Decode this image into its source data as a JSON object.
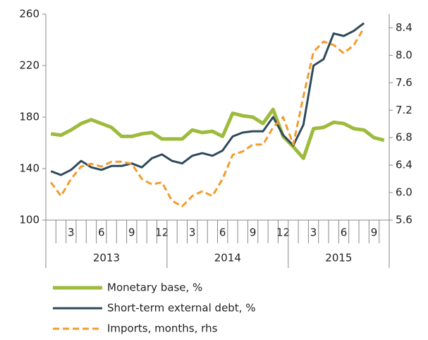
{
  "chart_data": {
    "type": "line",
    "categories": [
      null,
      null,
      "3",
      null,
      null,
      "6",
      null,
      null,
      "9",
      null,
      null,
      "12",
      null,
      null,
      "3",
      null,
      null,
      "6",
      null,
      null,
      "9",
      null,
      null,
      "12",
      null,
      null,
      "3",
      null,
      null,
      "6",
      null,
      null,
      "9",
      null
    ],
    "group_labels": [
      "2013",
      "2014",
      "2015"
    ],
    "series": [
      {
        "name": "Monetary base, %",
        "color": "#9dbb3c",
        "width": 5,
        "dashed": false,
        "values": [
          167,
          166,
          170,
          175,
          178,
          175,
          172,
          165,
          165,
          167,
          168,
          163,
          163,
          163,
          170,
          168,
          169,
          165,
          183,
          181,
          180,
          175,
          186,
          165,
          157,
          148,
          171,
          172,
          176,
          175,
          171,
          170,
          164,
          162
        ]
      },
      {
        "name": "Short-term external debt, %",
        "color": "#2e4a5b",
        "width": 3,
        "dashed": false,
        "values": [
          138,
          135,
          139,
          146,
          141,
          139,
          142,
          142,
          144,
          141,
          148,
          151,
          146,
          144,
          150,
          152,
          150,
          154,
          165,
          168,
          169,
          169,
          180,
          166,
          158,
          174,
          220,
          225,
          245,
          243,
          247,
          253,
          null,
          null
        ]
      },
      {
        "name": "Imports, months, rhs",
        "color": "#f39c2b",
        "width": 3,
        "dashed": true,
        "axis": "y2",
        "values": [
          6.15,
          5.95,
          6.2,
          6.38,
          6.42,
          6.38,
          6.45,
          6.45,
          6.42,
          6.2,
          6.12,
          6.15,
          5.88,
          5.8,
          5.95,
          6.02,
          5.95,
          6.2,
          6.55,
          6.6,
          6.7,
          6.7,
          6.95,
          7.1,
          6.7,
          7.4,
          8.05,
          8.2,
          8.15,
          8.03,
          8.15,
          8.4,
          null,
          null
        ]
      }
    ],
    "ylim": [
      100,
      260
    ],
    "yticks": [
      100,
      140,
      180,
      220,
      260
    ],
    "y2lim": [
      5.6,
      8.6
    ],
    "y2ticks": [
      {
        "value": 5.6,
        "label": "5.6"
      },
      {
        "value": 6.0,
        "label": "6.0"
      },
      {
        "value": 6.4,
        "label": "6.4"
      },
      {
        "value": 6.8,
        "label": "6.8"
      },
      {
        "value": 7.2,
        "label": "7.2"
      },
      {
        "value": 7.6,
        "label": "7.6"
      },
      {
        "value": 8.0,
        "label": "8.0"
      },
      {
        "value": 8.4,
        "label": "8.4"
      }
    ],
    "grid": false,
    "legend": "bottom"
  }
}
